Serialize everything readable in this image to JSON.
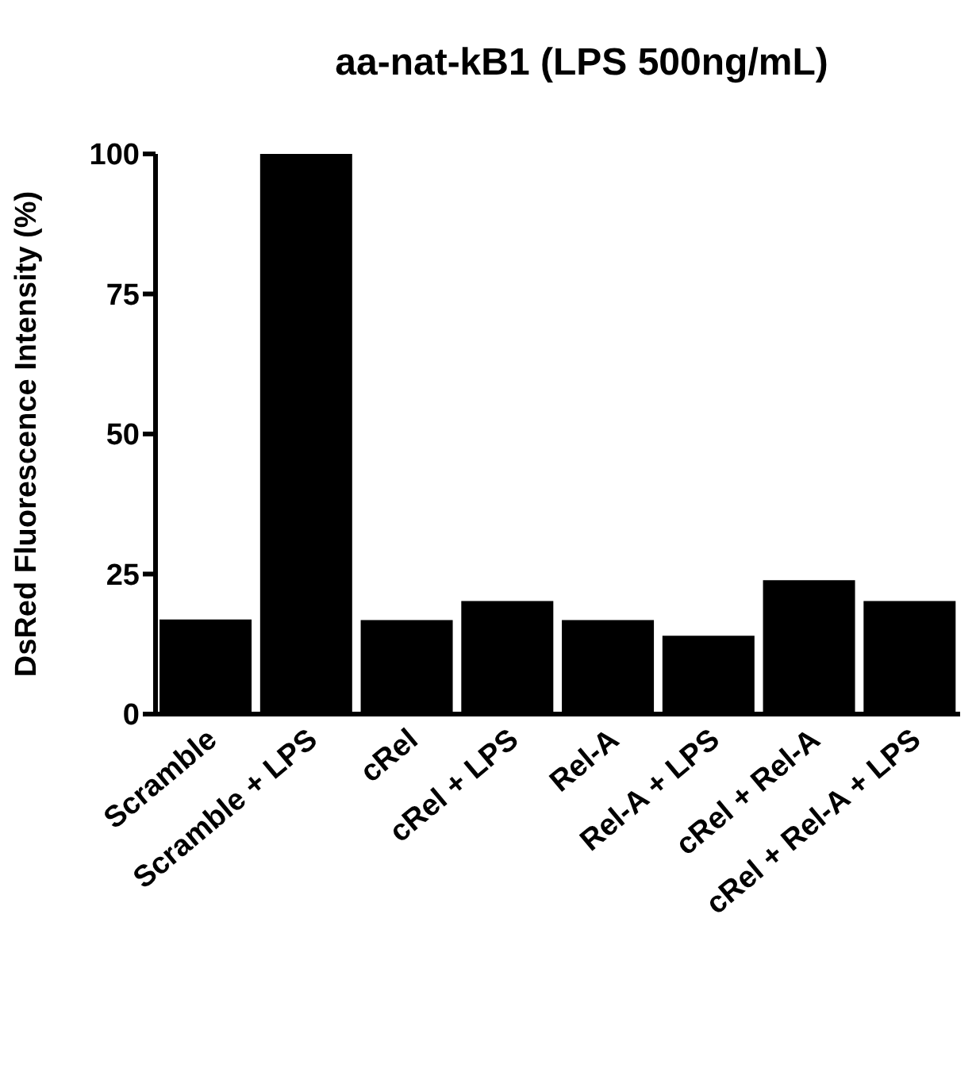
{
  "chart_data": {
    "type": "bar",
    "title": "aa-nat-kB1 (LPS 500ng/mL)",
    "ylabel": "DsRed Fluorescence Intensity (%)",
    "categories": [
      "Scramble",
      "Scramble + LPS",
      "cRel",
      "cRel + LPS",
      "Rel-A",
      "Rel-A + LPS",
      "cRel + Rel-A",
      "cRel + Rel-A + LPS"
    ],
    "values": [
      16.9,
      100,
      16.8,
      20.2,
      16.8,
      14,
      23.9,
      20.2
    ],
    "color": "#000000",
    "ylim": [
      0,
      100
    ],
    "yticks": [
      0,
      25,
      50,
      75,
      100
    ],
    "grid": false
  }
}
